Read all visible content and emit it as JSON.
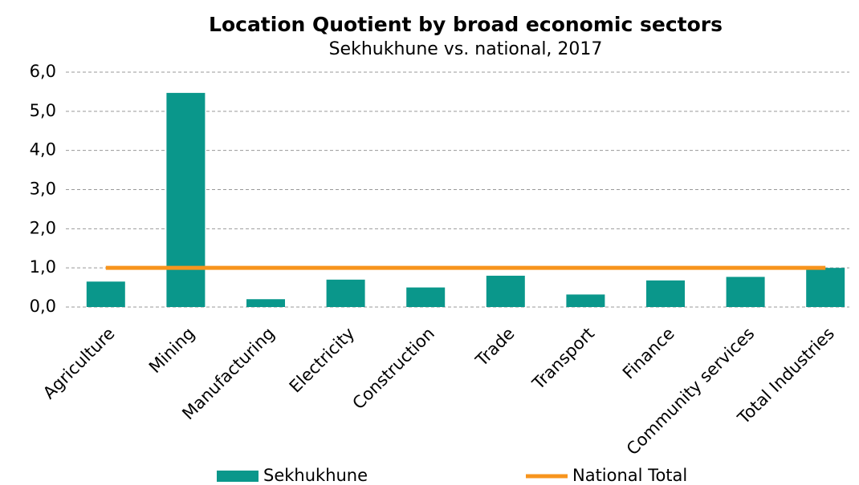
{
  "chart_data": {
    "type": "bar",
    "title": "Location Quotient by broad economic sectors",
    "subtitle": "Sekhukhune vs. national, 2017",
    "categories": [
      "Agriculture",
      "Mining",
      "Manufacturing",
      "Electricity",
      "Construction",
      "Trade",
      "Transport",
      "Finance",
      "Community services",
      "Total Industries"
    ],
    "series": [
      {
        "name": "Sekhukhune",
        "color": "#0a978b",
        "type": "bar",
        "values": [
          0.65,
          5.47,
          0.2,
          0.7,
          0.5,
          0.8,
          0.32,
          0.68,
          0.77,
          1.0
        ]
      },
      {
        "name": "National Total",
        "color": "#f7941d",
        "type": "line",
        "values": [
          1.0,
          1.0,
          1.0,
          1.0,
          1.0,
          1.0,
          1.0,
          1.0,
          1.0,
          1.0
        ]
      }
    ],
    "ylim": [
      0,
      6
    ],
    "yticks": [
      {
        "value": 0,
        "label": "0,0"
      },
      {
        "value": 1,
        "label": "1,0"
      },
      {
        "value": 2,
        "label": "2,0"
      },
      {
        "value": 3,
        "label": "3,0"
      },
      {
        "value": 4,
        "label": "4,0"
      },
      {
        "value": 5,
        "label": "5,0"
      },
      {
        "value": 6,
        "label": "6,0"
      }
    ],
    "grid": true,
    "legend": "bottom"
  }
}
